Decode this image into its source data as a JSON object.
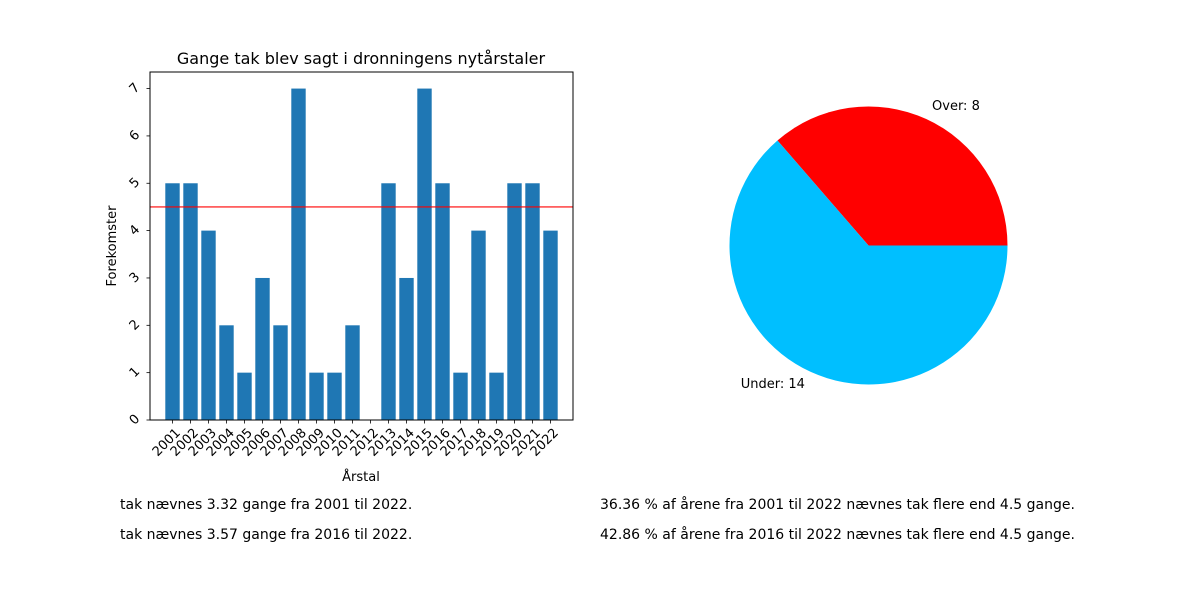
{
  "chart_data": [
    {
      "type": "bar",
      "title": "Gange tak blev sagt i dronningens nytårstaler",
      "xlabel": "Årstal",
      "ylabel": "Forekomster",
      "categories": [
        "2001",
        "2002",
        "2003",
        "2004",
        "2005",
        "2006",
        "2007",
        "2008",
        "2009",
        "2010",
        "2011",
        "2012",
        "2013",
        "2014",
        "2015",
        "2016",
        "2017",
        "2018",
        "2019",
        "2020",
        "2021",
        "2022"
      ],
      "values": [
        5,
        5,
        4,
        2,
        1,
        3,
        2,
        7,
        1,
        1,
        2,
        0,
        5,
        3,
        7,
        5,
        1,
        4,
        1,
        5,
        5,
        4
      ],
      "yticks": [
        "0",
        "1",
        "2",
        "3",
        "4",
        "5",
        "6",
        "7"
      ],
      "ylim": [
        0,
        7.35
      ],
      "reference_line": {
        "y": 4.5,
        "color": "#ff0000"
      },
      "bar_color": "#1f77b4",
      "grid": false
    },
    {
      "type": "pie",
      "slices": [
        {
          "label": "Over: 8",
          "value": 8,
          "color": "#ff0000"
        },
        {
          "label": "Under: 14",
          "value": 14,
          "color": "#00bfff"
        }
      ]
    }
  ],
  "notes": {
    "line1": "tak nævnes 3.32 gange fra 2001 til 2022.",
    "line2": "tak nævnes 3.57 gange fra 2016 til 2022.",
    "line3": "36.36 % af årene fra 2001 til 2022 nævnes tak flere end 4.5 gange.",
    "line4": "42.86 % af årene fra 2016 til 2022 nævnes tak flere end 4.5 gange."
  }
}
